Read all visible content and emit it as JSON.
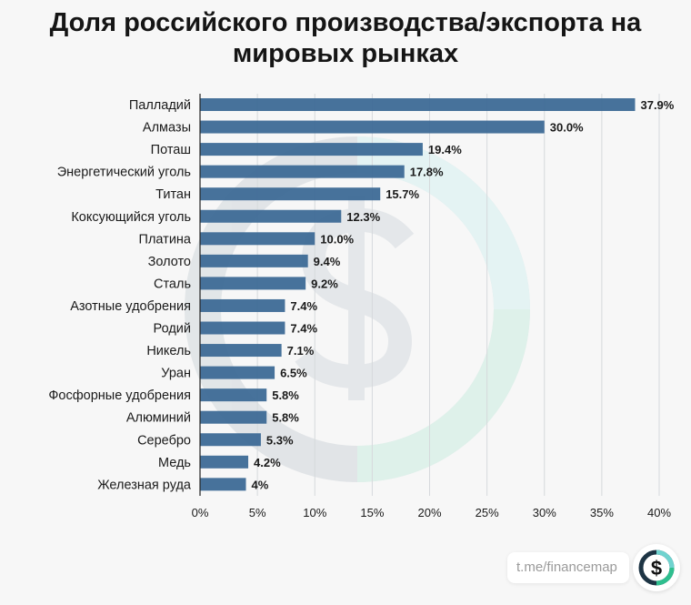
{
  "chart_data": {
    "type": "bar",
    "orientation": "horizontal",
    "title": "Доля российского производства/экспорта на мировых рынках",
    "categories": [
      "Палладий",
      "Алмазы",
      "Поташ",
      "Энергетический уголь",
      "Титан",
      "Коксующийся уголь",
      "Платина",
      "Золото",
      "Сталь",
      "Азотные удобрения",
      "Родий",
      "Никель",
      "Уран",
      "Фосфорные удобрения",
      "Алюминий",
      "Серебро",
      "Медь",
      "Железная руда"
    ],
    "values": [
      37.9,
      30.0,
      19.4,
      17.8,
      15.7,
      12.3,
      10.0,
      9.4,
      9.2,
      7.4,
      7.4,
      7.1,
      6.5,
      5.8,
      5.8,
      5.3,
      4.2,
      4
    ],
    "value_labels": [
      "37.9%",
      "30.0%",
      "19.4%",
      "17.8%",
      "15.7%",
      "12.3%",
      "10.0%",
      "9.4%",
      "9.2%",
      "7.4%",
      "7.4%",
      "7.1%",
      "6.5%",
      "5.8%",
      "5.8%",
      "5.3%",
      "4.2%",
      "4%"
    ],
    "xlim": [
      0,
      40
    ],
    "xticks": [
      "0%",
      "5%",
      "10%",
      "15%",
      "20%",
      "25%",
      "30%",
      "35%",
      "40%"
    ],
    "grid": true,
    "bar_color": "#3d6a96"
  },
  "footer": {
    "link": "t.me/financemap",
    "logo_symbol": "$"
  }
}
